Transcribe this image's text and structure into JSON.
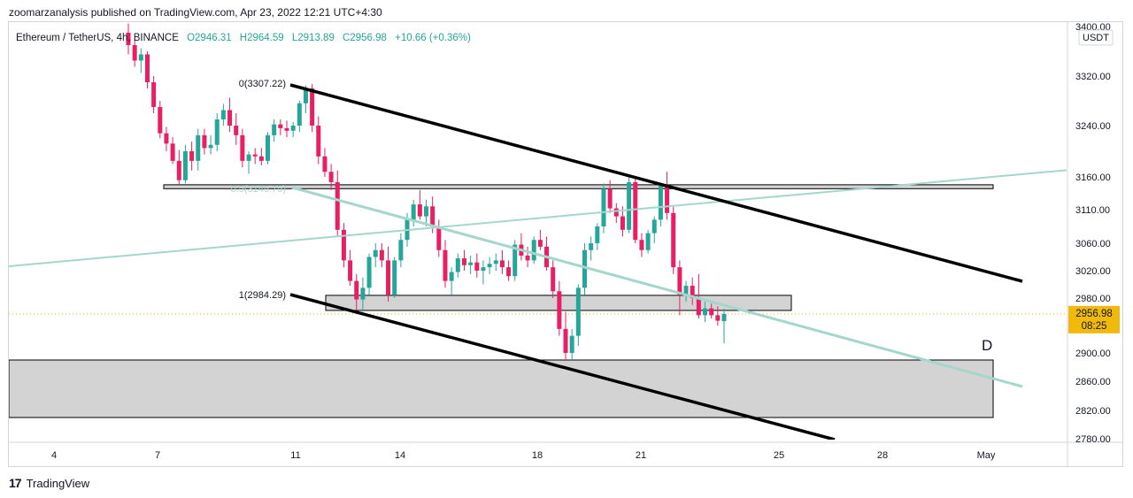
{
  "header": {
    "published": "zoomarzanalysis published on TradingView.com, Apr 23, 2022 12:21 UTC+4:30"
  },
  "legend": {
    "symbol": "Ethereum / TetherUS, 4h, BINANCE",
    "open": "O2946.31",
    "high": "H2964.59",
    "low": "L2913.89",
    "close": "C2956.98",
    "change": "+10.66 (+0.36%)"
  },
  "price_axis": {
    "currency": "USDT",
    "last_price": "2956.98",
    "countdown": "08:25"
  },
  "footer": {
    "brand": "TradingView"
  },
  "annotations": {
    "fib_0": "0(3307.22)",
    "fib_05": "0.5(3145.75)",
    "fib_1": "1(2984.29)",
    "pattern_point": "D"
  },
  "colors": {
    "up": "#26a69a",
    "down": "#e91e63",
    "line": "#000000",
    "zone": "#d3d3d3",
    "trend": "#a5d6cc",
    "last": "#f0b90b"
  },
  "chart_data": {
    "type": "candlestick",
    "timeframe": "4h",
    "symbol": "ETHUSDT",
    "x_tick_labels": [
      "4",
      "7",
      "11",
      "14",
      "18",
      "21",
      "25",
      "28",
      "May"
    ],
    "y_tick_labels": [
      "3400.00",
      "3320.00",
      "3240.00",
      "3160.00",
      "3110.00",
      "3060.00",
      "3020.00",
      "2980.00",
      "2900.00",
      "2860.00",
      "2820.00",
      "2780.00"
    ],
    "ylim": [
      2780,
      3400
    ],
    "series": [
      {
        "name": "ETHUSDT",
        "candles": [
          [
            3390,
            3405,
            3355,
            3370
          ],
          [
            3370,
            3380,
            3335,
            3345
          ],
          [
            3345,
            3365,
            3325,
            3355
          ],
          [
            3355,
            3360,
            3300,
            3310
          ],
          [
            3310,
            3320,
            3260,
            3270
          ],
          [
            3270,
            3280,
            3220,
            3228
          ],
          [
            3228,
            3238,
            3200,
            3212
          ],
          [
            3212,
            3222,
            3180,
            3185
          ],
          [
            3185,
            3202,
            3148,
            3155
          ],
          [
            3155,
            3210,
            3150,
            3200
          ],
          [
            3200,
            3215,
            3170,
            3185
          ],
          [
            3185,
            3235,
            3170,
            3225
          ],
          [
            3225,
            3235,
            3195,
            3205
          ],
          [
            3205,
            3225,
            3195,
            3210
          ],
          [
            3210,
            3260,
            3200,
            3250
          ],
          [
            3250,
            3275,
            3240,
            3265
          ],
          [
            3265,
            3285,
            3230,
            3240
          ],
          [
            3240,
            3260,
            3210,
            3225
          ],
          [
            3225,
            3235,
            3175,
            3185
          ],
          [
            3185,
            3200,
            3165,
            3195
          ],
          [
            3195,
            3205,
            3180,
            3192
          ],
          [
            3192,
            3205,
            3178,
            3185
          ],
          [
            3185,
            3230,
            3180,
            3225
          ],
          [
            3225,
            3250,
            3215,
            3242
          ],
          [
            3242,
            3250,
            3225,
            3236
          ],
          [
            3236,
            3248,
            3222,
            3232
          ],
          [
            3232,
            3246,
            3222,
            3240
          ],
          [
            3240,
            3280,
            3230,
            3276
          ],
          [
            3276,
            3305,
            3260,
            3300
          ],
          [
            3300,
            3307,
            3230,
            3240
          ],
          [
            3240,
            3255,
            3180,
            3192
          ],
          [
            3192,
            3205,
            3160,
            3168
          ],
          [
            3168,
            3180,
            3140,
            3152
          ],
          [
            3152,
            3170,
            3070,
            3080
          ],
          [
            3080,
            3090,
            3025,
            3035
          ],
          [
            3035,
            3050,
            2998,
            3005
          ],
          [
            3005,
            3015,
            2962,
            2978
          ],
          [
            2978,
            3010,
            2960,
            2995
          ],
          [
            2995,
            3045,
            2985,
            3040
          ],
          [
            3040,
            3060,
            3025,
            3050
          ],
          [
            3050,
            3060,
            3025,
            3035
          ],
          [
            3035,
            3055,
            2975,
            2985
          ],
          [
            2985,
            3040,
            2980,
            3035
          ],
          [
            3035,
            3075,
            3025,
            3065
          ],
          [
            3065,
            3105,
            3055,
            3095
          ],
          [
            3095,
            3125,
            3085,
            3118
          ],
          [
            3118,
            3140,
            3095,
            3100
          ],
          [
            3100,
            3125,
            3085,
            3115
          ],
          [
            3115,
            3130,
            3075,
            3085
          ],
          [
            3085,
            3095,
            3040,
            3050
          ],
          [
            3050,
            3065,
            2995,
            3005
          ],
          [
            3005,
            3025,
            2985,
            3018
          ],
          [
            3018,
            3045,
            3010,
            3038
          ],
          [
            3038,
            3050,
            3020,
            3028
          ],
          [
            3028,
            3042,
            3015,
            3032
          ],
          [
            3032,
            3045,
            3010,
            3020
          ],
          [
            3020,
            3035,
            3000,
            3025
          ],
          [
            3025,
            3040,
            3015,
            3030
          ],
          [
            3030,
            3045,
            3020,
            3035
          ],
          [
            3035,
            3050,
            3015,
            3025
          ],
          [
            3025,
            3035,
            3005,
            3012
          ],
          [
            3012,
            3065,
            3005,
            3058
          ],
          [
            3058,
            3075,
            3035,
            3042
          ],
          [
            3042,
            3055,
            3025,
            3035
          ],
          [
            3035,
            3070,
            3030,
            3065
          ],
          [
            3065,
            3080,
            3050,
            3055
          ],
          [
            3055,
            3070,
            3020,
            3025
          ],
          [
            3025,
            3035,
            2980,
            2990
          ],
          [
            2990,
            3005,
            2925,
            2935
          ],
          [
            2935,
            2960,
            2890,
            2900
          ],
          [
            2900,
            2935,
            2890,
            2925
          ],
          [
            2925,
            3000,
            2910,
            2995
          ],
          [
            2995,
            3060,
            2985,
            3050
          ],
          [
            3050,
            3070,
            3035,
            3060
          ],
          [
            3060,
            3090,
            3050,
            3085
          ],
          [
            3085,
            3150,
            3075,
            3142
          ],
          [
            3142,
            3155,
            3105,
            3112
          ],
          [
            3112,
            3120,
            3090,
            3100
          ],
          [
            3100,
            3115,
            3070,
            3080
          ],
          [
            3080,
            3160,
            3075,
            3152
          ],
          [
            3152,
            3158,
            3060,
            3065
          ],
          [
            3065,
            3075,
            3040,
            3050
          ],
          [
            3050,
            3080,
            3045,
            3075
          ],
          [
            3075,
            3100,
            3060,
            3095
          ],
          [
            3095,
            3150,
            3085,
            3148
          ],
          [
            3148,
            3168,
            3095,
            3105
          ],
          [
            3105,
            3115,
            3015,
            3025
          ],
          [
            3025,
            3035,
            2955,
            2985
          ],
          [
            2985,
            3005,
            2975,
            2998
          ],
          [
            2998,
            3010,
            2970,
            2980
          ],
          [
            2980,
            3015,
            2950,
            2955
          ],
          [
            2955,
            2975,
            2945,
            2965
          ],
          [
            2965,
            2972,
            2950,
            2955
          ],
          [
            2955,
            2968,
            2940,
            2947
          ],
          [
            2946.31,
            2964.59,
            2913.89,
            2956.98
          ]
        ]
      }
    ],
    "levels": [
      {
        "label": "0(3307.22)",
        "value": 3307.22
      },
      {
        "label": "0.5(3145.75)",
        "value": 3145.75
      },
      {
        "label": "1(2984.29)",
        "value": 2984.29
      }
    ],
    "zones": [
      {
        "from": 3142,
        "to": 3148
      },
      {
        "from": 2962,
        "to": 2984
      },
      {
        "from": 2810,
        "to": 2890
      }
    ]
  }
}
